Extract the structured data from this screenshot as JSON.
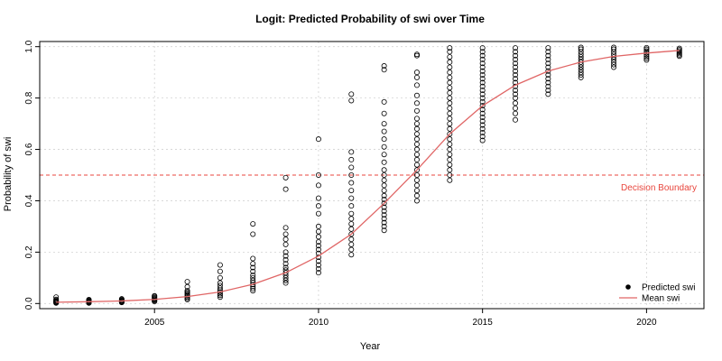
{
  "chart_data": {
    "type": "scatter",
    "title": "Logit: Predicted Probability of swi over Time",
    "xlabel": "Year",
    "ylabel": "Probability of swi",
    "xlim": [
      2001.5,
      2021.75
    ],
    "ylim": [
      -0.02,
      1.02
    ],
    "x_ticks": [
      2005,
      2010,
      2015,
      2020
    ],
    "y_ticks": [
      0.0,
      0.2,
      0.4,
      0.6,
      0.8,
      1.0
    ],
    "grid": true,
    "legend": {
      "position": "bottom-right",
      "entries": [
        {
          "label": "Predicted swi",
          "marker": "filled-circle",
          "color": "#000000"
        },
        {
          "label": "Mean swi",
          "marker": "line",
          "color": "#e06666"
        }
      ]
    },
    "threshold": {
      "y": 0.5,
      "label": "Decision Boundary",
      "color": "#e8453c",
      "style": "dashed"
    },
    "series": [
      {
        "name": "Predicted swi",
        "kind": "points",
        "color": "#000000",
        "by_year": [
          {
            "x": 2002,
            "y": [
              0.002,
              0.004,
              0.006,
              0.008,
              0.01,
              0.013,
              0.016,
              0.025
            ]
          },
          {
            "x": 2003,
            "y": [
              0.002,
              0.004,
              0.006,
              0.008,
              0.01,
              0.012,
              0.015
            ]
          },
          {
            "x": 2004,
            "y": [
              0.004,
              0.006,
              0.008,
              0.01,
              0.012,
              0.015,
              0.018
            ]
          },
          {
            "x": 2005,
            "y": [
              0.008,
              0.011,
              0.014,
              0.017,
              0.02,
              0.023,
              0.027,
              0.03
            ]
          },
          {
            "x": 2006,
            "y": [
              0.015,
              0.02,
              0.025,
              0.03,
              0.035,
              0.04,
              0.045,
              0.05,
              0.065,
              0.085
            ]
          },
          {
            "x": 2007,
            "y": [
              0.025,
              0.032,
              0.038,
              0.045,
              0.052,
              0.06,
              0.07,
              0.08,
              0.1,
              0.125,
              0.15
            ]
          },
          {
            "x": 2008,
            "y": [
              0.05,
              0.058,
              0.066,
              0.074,
              0.082,
              0.09,
              0.1,
              0.11,
              0.125,
              0.14,
              0.155,
              0.175,
              0.27,
              0.31
            ]
          },
          {
            "x": 2009,
            "y": [
              0.08,
              0.09,
              0.1,
              0.11,
              0.12,
              0.13,
              0.14,
              0.155,
              0.17,
              0.185,
              0.2,
              0.23,
              0.25,
              0.27,
              0.295,
              0.445,
              0.49
            ]
          },
          {
            "x": 2010,
            "y": [
              0.12,
              0.135,
              0.15,
              0.165,
              0.18,
              0.195,
              0.21,
              0.225,
              0.24,
              0.26,
              0.28,
              0.3,
              0.35,
              0.38,
              0.41,
              0.46,
              0.5,
              0.64
            ]
          },
          {
            "x": 2011,
            "y": [
              0.19,
              0.21,
              0.23,
              0.25,
              0.27,
              0.29,
              0.31,
              0.33,
              0.35,
              0.38,
              0.41,
              0.44,
              0.47,
              0.5,
              0.53,
              0.56,
              0.59,
              0.79,
              0.815
            ]
          },
          {
            "x": 2012,
            "y": [
              0.285,
              0.3,
              0.315,
              0.33,
              0.345,
              0.36,
              0.375,
              0.39,
              0.405,
              0.42,
              0.44,
              0.46,
              0.48,
              0.5,
              0.52,
              0.55,
              0.58,
              0.61,
              0.64,
              0.67,
              0.7,
              0.74,
              0.785,
              0.91,
              0.925
            ]
          },
          {
            "x": 2013,
            "y": [
              0.4,
              0.42,
              0.44,
              0.46,
              0.48,
              0.5,
              0.52,
              0.54,
              0.56,
              0.58,
              0.6,
              0.62,
              0.64,
              0.66,
              0.68,
              0.7,
              0.72,
              0.75,
              0.78,
              0.81,
              0.85,
              0.88,
              0.9,
              0.965,
              0.97
            ]
          },
          {
            "x": 2014,
            "y": [
              0.48,
              0.5,
              0.52,
              0.54,
              0.56,
              0.58,
              0.6,
              0.62,
              0.64,
              0.66,
              0.68,
              0.7,
              0.72,
              0.74,
              0.76,
              0.78,
              0.8,
              0.82,
              0.84,
              0.86,
              0.88,
              0.9,
              0.92,
              0.94,
              0.96,
              0.98,
              0.995
            ]
          },
          {
            "x": 2015,
            "y": [
              0.635,
              0.65,
              0.665,
              0.68,
              0.695,
              0.71,
              0.725,
              0.74,
              0.755,
              0.77,
              0.785,
              0.8,
              0.815,
              0.83,
              0.845,
              0.86,
              0.875,
              0.89,
              0.905,
              0.92,
              0.935,
              0.95,
              0.965,
              0.98,
              0.995
            ]
          },
          {
            "x": 2016,
            "y": [
              0.715,
              0.74,
              0.76,
              0.78,
              0.8,
              0.815,
              0.83,
              0.845,
              0.86,
              0.875,
              0.89,
              0.905,
              0.92,
              0.935,
              0.95,
              0.965,
              0.98,
              0.995
            ]
          },
          {
            "x": 2017,
            "y": [
              0.815,
              0.83,
              0.845,
              0.86,
              0.875,
              0.89,
              0.905,
              0.92,
              0.935,
              0.95,
              0.965,
              0.98,
              0.995
            ]
          },
          {
            "x": 2018,
            "y": [
              0.88,
              0.89,
              0.9,
              0.91,
              0.92,
              0.93,
              0.94,
              0.95,
              0.96,
              0.97,
              0.98,
              0.99,
              0.997
            ]
          },
          {
            "x": 2019,
            "y": [
              0.92,
              0.93,
              0.94,
              0.95,
              0.96,
              0.97,
              0.98,
              0.99,
              0.997
            ]
          },
          {
            "x": 2020,
            "y": [
              0.948,
              0.955,
              0.962,
              0.969,
              0.976,
              0.983,
              0.99,
              0.996
            ]
          },
          {
            "x": 2021,
            "y": [
              0.963,
              0.968,
              0.973,
              0.978,
              0.983,
              0.988,
              0.993
            ]
          }
        ]
      },
      {
        "name": "Mean swi",
        "kind": "line",
        "color": "#e06666",
        "x": [
          2002,
          2003,
          2004,
          2005,
          2006,
          2007,
          2008,
          2009,
          2010,
          2011,
          2012,
          2013,
          2014,
          2015,
          2016,
          2017,
          2018,
          2019,
          2020,
          2021
        ],
        "y": [
          0.005,
          0.007,
          0.01,
          0.016,
          0.027,
          0.045,
          0.075,
          0.12,
          0.185,
          0.27,
          0.39,
          0.52,
          0.66,
          0.77,
          0.85,
          0.905,
          0.94,
          0.962,
          0.975,
          0.985
        ]
      }
    ]
  }
}
